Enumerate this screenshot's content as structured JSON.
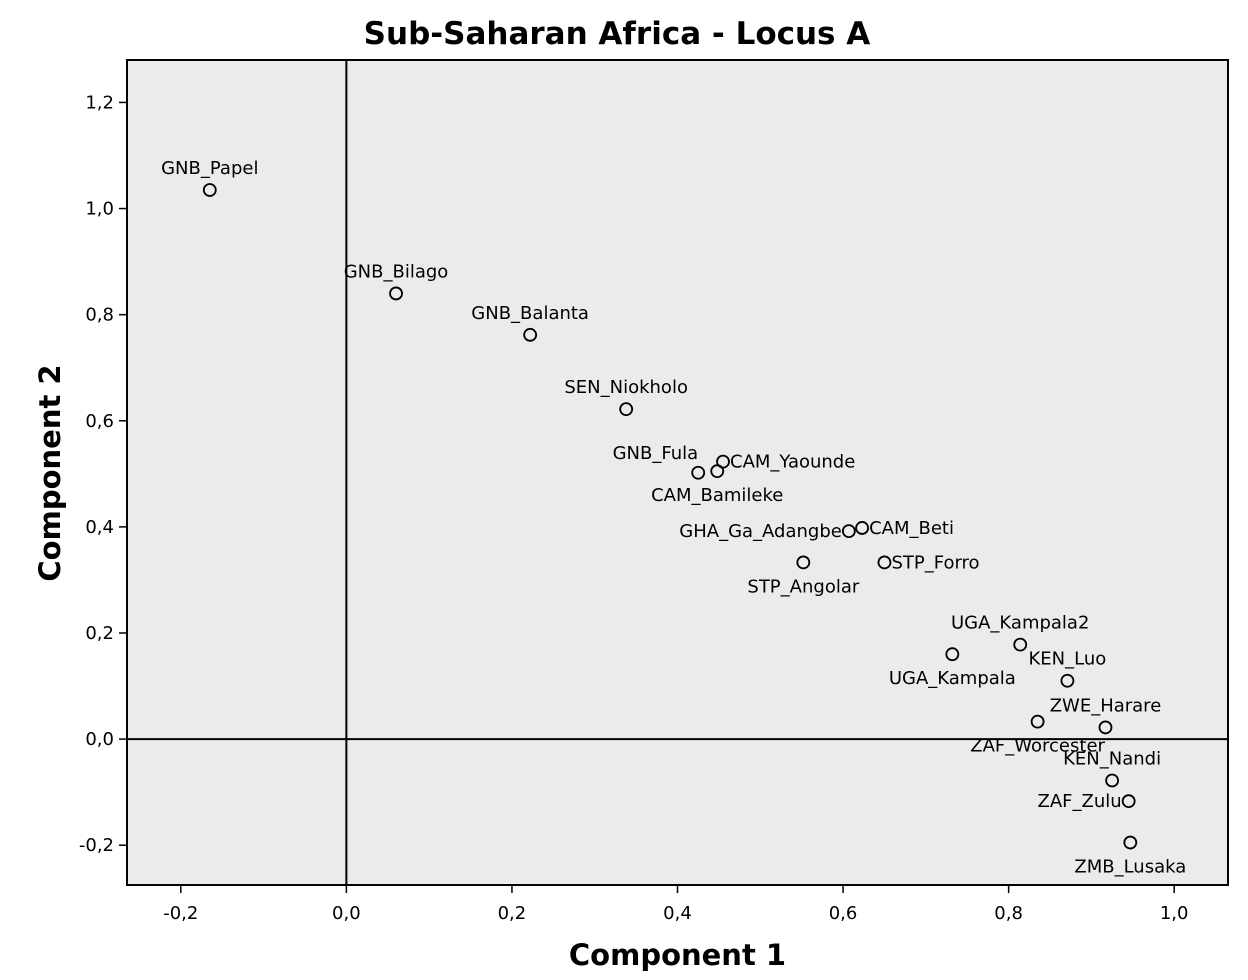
{
  "chart_data": {
    "type": "scatter",
    "title": "Sub-Saharan Africa - Locus A",
    "xlabel": "Component 1",
    "ylabel": "Component 2",
    "xlim": [
      -0.265,
      1.065
    ],
    "ylim": [
      -0.275,
      1.28
    ],
    "xticks": [
      -0.2,
      0.0,
      0.2,
      0.4,
      0.6,
      0.8,
      1.0
    ],
    "yticks": [
      -0.2,
      0.0,
      0.2,
      0.4,
      0.6,
      0.8,
      1.0,
      1.2
    ],
    "xtick_labels": [
      "-0,2",
      "0,0",
      "0,2",
      "0,4",
      "0,6",
      "0,8",
      "1,0"
    ],
    "ytick_labels": [
      "-0,2",
      "0,0",
      "0,2",
      "0,4",
      "0,6",
      "0,8",
      "1,0",
      "1,2"
    ],
    "reference_lines": {
      "x": 0.0,
      "y": 0.0
    },
    "grid": false,
    "marker": "open-circle",
    "colors": {
      "plot_background": "#ebebeb",
      "marker": "#000000",
      "axis": "#000000"
    },
    "points": [
      {
        "label": "GNB_Papel",
        "x": -0.165,
        "y": 1.035,
        "label_pos": "above"
      },
      {
        "label": "GNB_Bilago",
        "x": 0.06,
        "y": 0.84,
        "label_pos": "above"
      },
      {
        "label": "GNB_Balanta",
        "x": 0.222,
        "y": 0.762,
        "label_pos": "above"
      },
      {
        "label": "SEN_Niokholo",
        "x": 0.338,
        "y": 0.622,
        "label_pos": "above"
      },
      {
        "label": "GNB_Fula",
        "x": 0.425,
        "y": 0.502,
        "label_pos": "above-left"
      },
      {
        "label": "CAM_Bamileke",
        "x": 0.448,
        "y": 0.505,
        "label_pos": "below"
      },
      {
        "label": "CAM_Yaounde",
        "x": 0.455,
        "y": 0.523,
        "label_pos": "right"
      },
      {
        "label": "GHA_Ga_Adangbe",
        "x": 0.607,
        "y": 0.392,
        "label_pos": "left"
      },
      {
        "label": "CAM_Beti",
        "x": 0.623,
        "y": 0.398,
        "label_pos": "right"
      },
      {
        "label": "STP_Angolar",
        "x": 0.552,
        "y": 0.333,
        "label_pos": "below"
      },
      {
        "label": "STP_Forro",
        "x": 0.65,
        "y": 0.333,
        "label_pos": "right"
      },
      {
        "label": "UGA_Kampala",
        "x": 0.732,
        "y": 0.16,
        "label_pos": "below"
      },
      {
        "label": "UGA_Kampala2",
        "x": 0.814,
        "y": 0.178,
        "label_pos": "above"
      },
      {
        "label": "KEN_Luo",
        "x": 0.871,
        "y": 0.11,
        "label_pos": "above"
      },
      {
        "label": "ZAF_Worcester",
        "x": 0.835,
        "y": 0.033,
        "label_pos": "below"
      },
      {
        "label": "ZWE_Harare",
        "x": 0.917,
        "y": 0.022,
        "label_pos": "above"
      },
      {
        "label": "KEN_Nandi",
        "x": 0.925,
        "y": -0.078,
        "label_pos": "above"
      },
      {
        "label": "ZAF_Zulu",
        "x": 0.945,
        "y": -0.117,
        "label_pos": "left"
      },
      {
        "label": "ZMB_Lusaka",
        "x": 0.947,
        "y": -0.195,
        "label_pos": "below"
      }
    ]
  }
}
